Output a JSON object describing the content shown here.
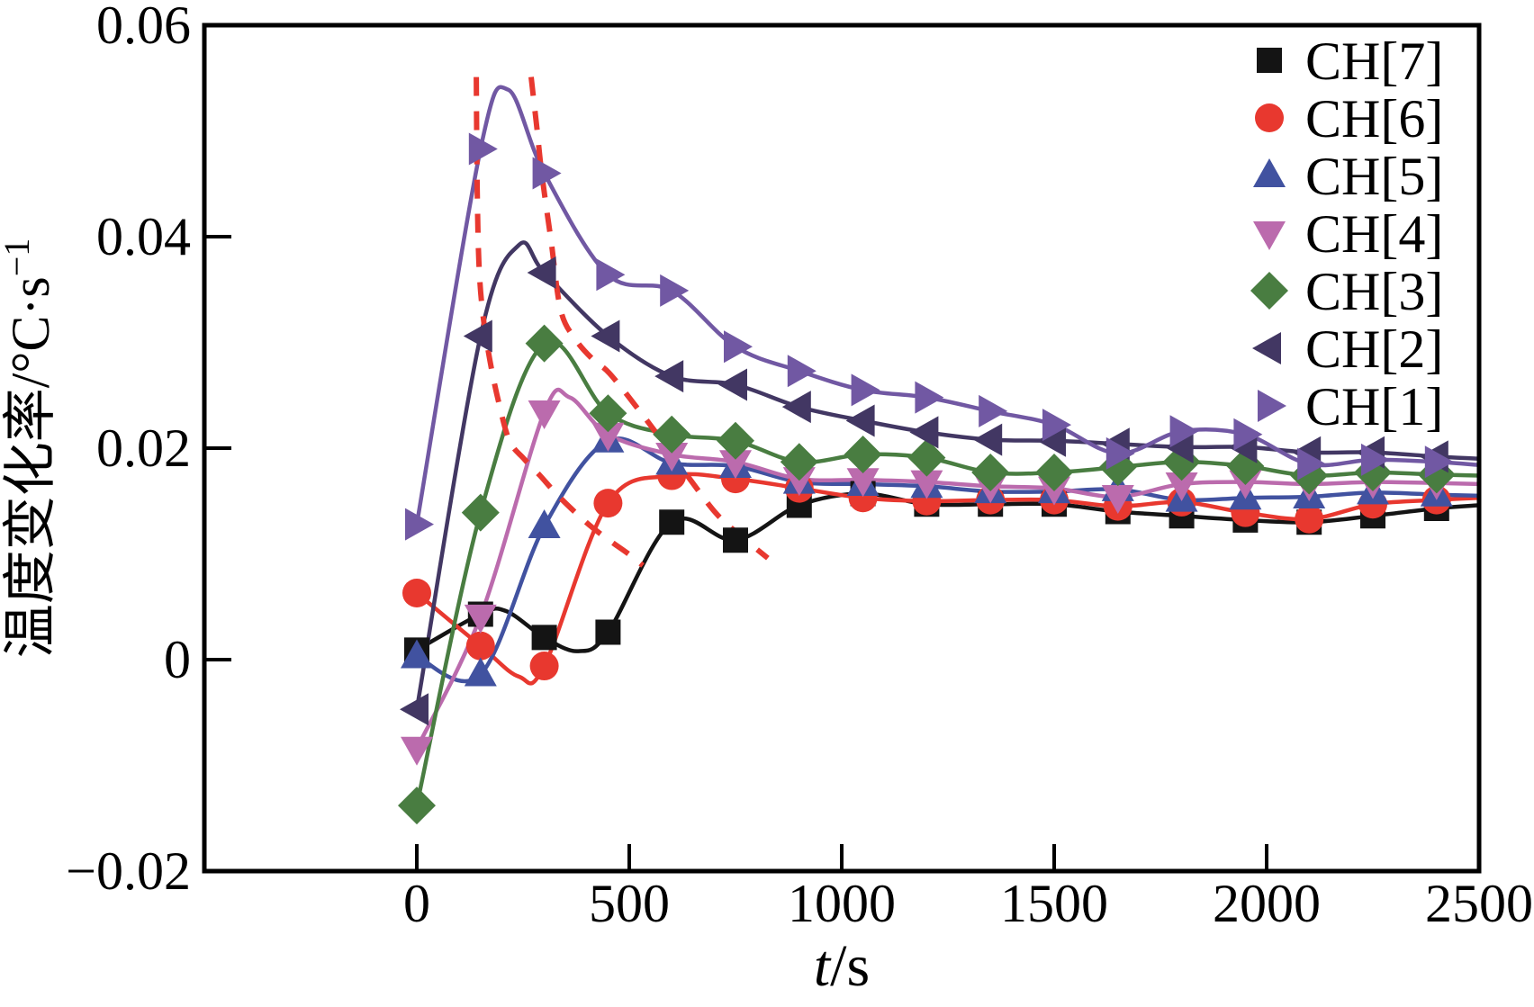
{
  "figure": {
    "background": "#ffffff",
    "axis_color": "#000000",
    "ylabel_main": "温度变化率/°C·s",
    "ylabel_sup": "−1",
    "xlabel_italic": "t",
    "xlabel_rest": "/s"
  },
  "chart_data": {
    "type": "line",
    "title": "",
    "xlabel": "t/s",
    "ylabel": "温度变化率/°C·s⁻¹",
    "xlim": [
      -500,
      2500
    ],
    "ylim": [
      -0.02,
      0.06
    ],
    "grid": false,
    "legend_position": "inside-top-right",
    "x_ticks": {
      "values": [
        0,
        500,
        1000,
        1500,
        2000,
        2500
      ],
      "labels": [
        "0",
        "500",
        "1000",
        "1500",
        "2000",
        "2500"
      ]
    },
    "y_ticks": {
      "values": [
        -0.02,
        0,
        0.02,
        0.04,
        0.06
      ],
      "labels": [
        "−0.02",
        "0",
        "0.02",
        "0.04",
        "0.06"
      ]
    },
    "x": [
      0,
      150,
      300,
      450,
      600,
      750,
      900,
      1050,
      1200,
      1350,
      1500,
      1650,
      1800,
      1950,
      2100,
      2250,
      2400
    ],
    "series": [
      {
        "name": "CH[7]",
        "marker": "square",
        "color": "#141414",
        "values": [
          0.0009,
          0.0043,
          0.0021,
          0.0026,
          0.013,
          0.0113,
          0.0146,
          0.0157,
          0.0147,
          0.0147,
          0.0147,
          0.014,
          0.0136,
          0.0132,
          0.013,
          0.0136,
          0.0143
        ],
        "extra_points": [
          [
            210,
            0.0046
          ],
          [
            380,
            0.0008
          ]
        ],
        "tail": 0.0146
      },
      {
        "name": "CH[6]",
        "marker": "circle",
        "color": "#e8382f",
        "values": [
          0.0063,
          0.0013,
          -0.0006,
          0.0148,
          0.0174,
          0.0171,
          0.0162,
          0.0153,
          0.015,
          0.0151,
          0.0151,
          0.0145,
          0.0149,
          0.0139,
          0.0133,
          0.0147,
          0.0151
        ],
        "extra_points": [
          [
            240,
            -0.0016
          ]
        ],
        "tail": 0.0153
      },
      {
        "name": "CH[5]",
        "marker": "triangle-up",
        "color": "#4152a0",
        "values": [
          0.0003,
          -0.0014,
          0.0126,
          0.0207,
          0.0186,
          0.0183,
          0.0168,
          0.0166,
          0.0164,
          0.0159,
          0.0159,
          0.0161,
          0.0151,
          0.0153,
          0.0154,
          0.0158,
          0.0156
        ],
        "extra_points": [],
        "tail": 0.0155
      },
      {
        "name": "CH[4]",
        "marker": "triangle-down",
        "color": "#bb6bad",
        "values": [
          -0.0084,
          0.0041,
          0.0234,
          0.0213,
          0.0194,
          0.0187,
          0.0171,
          0.017,
          0.0168,
          0.0164,
          0.0162,
          0.0154,
          0.0166,
          0.0168,
          0.0166,
          0.0168,
          0.0167
        ],
        "extra_points": [
          [
            360,
            0.0248
          ]
        ],
        "tail": 0.0166
      },
      {
        "name": "CH[3]",
        "marker": "diamond",
        "color": "#497d41",
        "values": [
          -0.0138,
          0.0139,
          0.0299,
          0.0233,
          0.0213,
          0.0207,
          0.0187,
          0.0194,
          0.0191,
          0.0177,
          0.0177,
          0.0182,
          0.0187,
          0.0183,
          0.0174,
          0.0177,
          0.0175
        ],
        "extra_points": [],
        "tail": 0.0174
      },
      {
        "name": "CH[2]",
        "marker": "triangle-left",
        "color": "#423763",
        "values": [
          -0.0047,
          0.0306,
          0.0366,
          0.0306,
          0.0268,
          0.026,
          0.0239,
          0.0226,
          0.0215,
          0.0208,
          0.0207,
          0.0204,
          0.0201,
          0.0201,
          0.0196,
          0.0196,
          0.0192
        ],
        "extra_points": [
          [
            240,
            0.0392
          ]
        ],
        "tail": 0.019
      },
      {
        "name": "CH[1]",
        "marker": "triangle-right",
        "color": "#7158a3",
        "values": [
          0.0128,
          0.0483,
          0.046,
          0.0364,
          0.0349,
          0.0296,
          0.0273,
          0.0255,
          0.0248,
          0.0235,
          0.0222,
          0.0195,
          0.0216,
          0.0213,
          0.0185,
          0.0189,
          0.0187
        ],
        "extra_points": [
          [
            215,
            0.0539
          ]
        ],
        "tail": 0.0184
      }
    ],
    "dashed_guides": [
      {
        "color": "#e8382f",
        "points": [
          [
            140,
            0.0551
          ],
          [
            142,
            0.0451
          ],
          [
            146,
            0.0377
          ],
          [
            155,
            0.0328
          ],
          [
            172,
            0.0283
          ],
          [
            193,
            0.0243
          ],
          [
            218,
            0.0207
          ],
          [
            252,
            0.019
          ],
          [
            290,
            0.0174
          ],
          [
            328,
            0.0157
          ],
          [
            371,
            0.014
          ],
          [
            413,
            0.0125
          ],
          [
            456,
            0.0112
          ],
          [
            498,
            0.01
          ],
          [
            532,
            0.0089
          ]
        ]
      },
      {
        "color": "#e8382f",
        "points": [
          [
            269,
            0.0551
          ],
          [
            282,
            0.0505
          ],
          [
            294,
            0.046
          ],
          [
            316,
            0.0396
          ],
          [
            339,
            0.033
          ],
          [
            375,
            0.0302
          ],
          [
            417,
            0.0283
          ],
          [
            453,
            0.0271
          ],
          [
            517,
            0.0239
          ],
          [
            581,
            0.0205
          ],
          [
            644,
            0.017
          ],
          [
            703,
            0.0139
          ],
          [
            756,
            0.0119
          ],
          [
            826,
            0.0096
          ]
        ]
      }
    ]
  },
  "legend": {
    "items": [
      {
        "label": "CH[7]"
      },
      {
        "label": "CH[6]"
      },
      {
        "label": "CH[5]"
      },
      {
        "label": "CH[4]"
      },
      {
        "label": "CH[3]"
      },
      {
        "label": "CH[2]"
      },
      {
        "label": "CH[1]"
      }
    ]
  }
}
